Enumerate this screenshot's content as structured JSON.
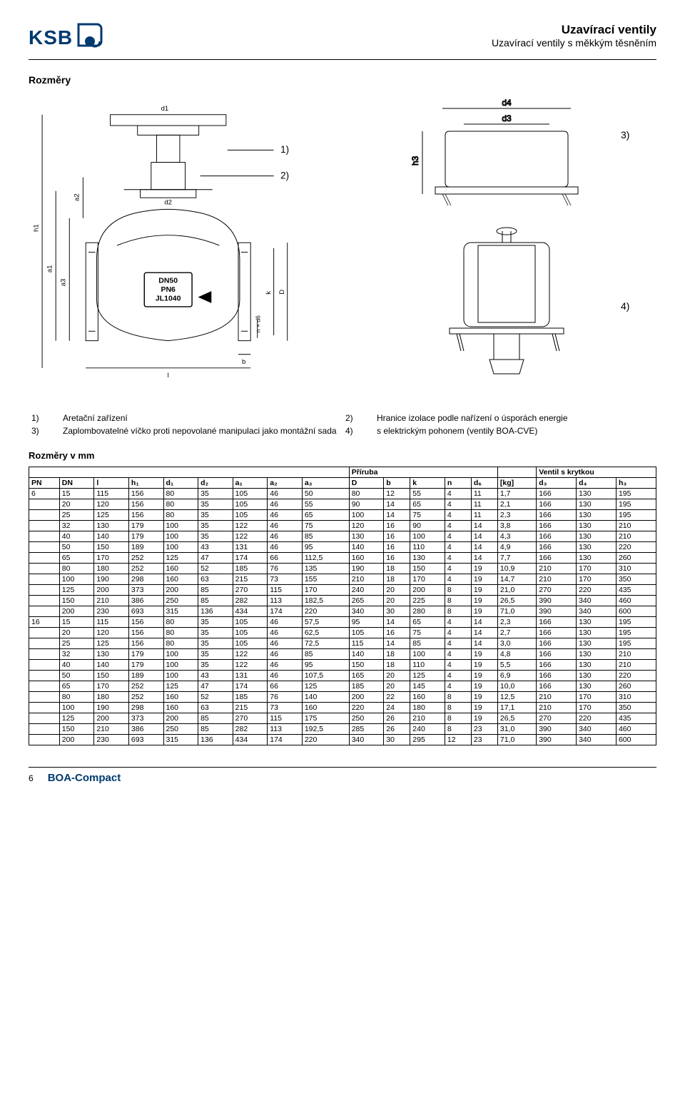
{
  "header": {
    "logo_text": "KSB",
    "title_main": "Uzavírací ventily",
    "title_sub": "Uzavírací ventily s měkkým těsněním"
  },
  "section": {
    "title": "Rozměry",
    "dim_heading": "Rozměry v mm"
  },
  "legend": {
    "items": [
      {
        "n": "1)",
        "t": "Aretační zařízení"
      },
      {
        "n": "3)",
        "t": "Zaplombovatelné víčko proti nepovolané manipulaci jako montážní sada"
      },
      {
        "n": "2)",
        "t": "Hranice izolace podle nařízení o úsporách energie"
      },
      {
        "n": "4)",
        "t": "s elektrickým pohonem (ventily BOA-CVE)"
      }
    ]
  },
  "callouts": {
    "c1": "1)",
    "c2": "2)",
    "c3": "3)",
    "c4": "4)"
  },
  "diagram_dims": {
    "d4": "d4",
    "d3": "d3",
    "h3": "h3",
    "a1": "a1",
    "a2": "a2",
    "a3": "a3",
    "h1": "h1",
    "d1": "d1",
    "d2": "d2",
    "l": "l",
    "b": "b",
    "nxd6": "n × d6",
    "k": "k",
    "D": "D",
    "plate_dn": "DN50",
    "plate_pn": "PN6",
    "plate_jl": "JL1040"
  },
  "table": {
    "group_flange": "Příruba",
    "group_cap": "Ventil s krytkou",
    "columns": [
      "PN",
      "DN",
      "l",
      "h₁",
      "d₁",
      "d₂",
      "a₁",
      "a₂",
      "a₃",
      "D",
      "b",
      "k",
      "n",
      "d₆",
      "[kg]",
      "d₃",
      "d₄",
      "h₃"
    ],
    "rows": [
      [
        "6",
        "15",
        "115",
        "156",
        "80",
        "35",
        "105",
        "46",
        "50",
        "80",
        "12",
        "55",
        "4",
        "11",
        "1,7",
        "166",
        "130",
        "195"
      ],
      [
        "",
        "20",
        "120",
        "156",
        "80",
        "35",
        "105",
        "46",
        "55",
        "90",
        "14",
        "65",
        "4",
        "11",
        "2,1",
        "166",
        "130",
        "195"
      ],
      [
        "",
        "25",
        "125",
        "156",
        "80",
        "35",
        "105",
        "46",
        "65",
        "100",
        "14",
        "75",
        "4",
        "11",
        "2,3",
        "166",
        "130",
        "195"
      ],
      [
        "",
        "32",
        "130",
        "179",
        "100",
        "35",
        "122",
        "46",
        "75",
        "120",
        "16",
        "90",
        "4",
        "14",
        "3,8",
        "166",
        "130",
        "210"
      ],
      [
        "",
        "40",
        "140",
        "179",
        "100",
        "35",
        "122",
        "46",
        "85",
        "130",
        "16",
        "100",
        "4",
        "14",
        "4,3",
        "166",
        "130",
        "210"
      ],
      [
        "",
        "50",
        "150",
        "189",
        "100",
        "43",
        "131",
        "46",
        "95",
        "140",
        "16",
        "110",
        "4",
        "14",
        "4,9",
        "166",
        "130",
        "220"
      ],
      [
        "",
        "65",
        "170",
        "252",
        "125",
        "47",
        "174",
        "66",
        "112,5",
        "160",
        "16",
        "130",
        "4",
        "14",
        "7,7",
        "166",
        "130",
        "260"
      ],
      [
        "",
        "80",
        "180",
        "252",
        "160",
        "52",
        "185",
        "76",
        "135",
        "190",
        "18",
        "150",
        "4",
        "19",
        "10,9",
        "210",
        "170",
        "310"
      ],
      [
        "",
        "100",
        "190",
        "298",
        "160",
        "63",
        "215",
        "73",
        "155",
        "210",
        "18",
        "170",
        "4",
        "19",
        "14,7",
        "210",
        "170",
        "350"
      ],
      [
        "",
        "125",
        "200",
        "373",
        "200",
        "85",
        "270",
        "115",
        "170",
        "240",
        "20",
        "200",
        "8",
        "19",
        "21,0",
        "270",
        "220",
        "435"
      ],
      [
        "",
        "150",
        "210",
        "386",
        "250",
        "85",
        "282",
        "113",
        "182,5",
        "265",
        "20",
        "225",
        "8",
        "19",
        "26,5",
        "390",
        "340",
        "460"
      ],
      [
        "",
        "200",
        "230",
        "693",
        "315",
        "136",
        "434",
        "174",
        "220",
        "340",
        "30",
        "280",
        "8",
        "19",
        "71,0",
        "390",
        "340",
        "600"
      ],
      [
        "16",
        "15",
        "115",
        "156",
        "80",
        "35",
        "105",
        "46",
        "57,5",
        "95",
        "14",
        "65",
        "4",
        "14",
        "2,3",
        "166",
        "130",
        "195"
      ],
      [
        "",
        "20",
        "120",
        "156",
        "80",
        "35",
        "105",
        "46",
        "62,5",
        "105",
        "16",
        "75",
        "4",
        "14",
        "2,7",
        "166",
        "130",
        "195"
      ],
      [
        "",
        "25",
        "125",
        "156",
        "80",
        "35",
        "105",
        "46",
        "72,5",
        "115",
        "14",
        "85",
        "4",
        "14",
        "3,0",
        "166",
        "130",
        "195"
      ],
      [
        "",
        "32",
        "130",
        "179",
        "100",
        "35",
        "122",
        "46",
        "85",
        "140",
        "18",
        "100",
        "4",
        "19",
        "4,8",
        "166",
        "130",
        "210"
      ],
      [
        "",
        "40",
        "140",
        "179",
        "100",
        "35",
        "122",
        "46",
        "95",
        "150",
        "18",
        "110",
        "4",
        "19",
        "5,5",
        "166",
        "130",
        "210"
      ],
      [
        "",
        "50",
        "150",
        "189",
        "100",
        "43",
        "131",
        "46",
        "107,5",
        "165",
        "20",
        "125",
        "4",
        "19",
        "6,9",
        "166",
        "130",
        "220"
      ],
      [
        "",
        "65",
        "170",
        "252",
        "125",
        "47",
        "174",
        "66",
        "125",
        "185",
        "20",
        "145",
        "4",
        "19",
        "10,0",
        "166",
        "130",
        "260"
      ],
      [
        "",
        "80",
        "180",
        "252",
        "160",
        "52",
        "185",
        "76",
        "140",
        "200",
        "22",
        "160",
        "8",
        "19",
        "12,5",
        "210",
        "170",
        "310"
      ],
      [
        "",
        "100",
        "190",
        "298",
        "160",
        "63",
        "215",
        "73",
        "160",
        "220",
        "24",
        "180",
        "8",
        "19",
        "17,1",
        "210",
        "170",
        "350"
      ],
      [
        "",
        "125",
        "200",
        "373",
        "200",
        "85",
        "270",
        "115",
        "175",
        "250",
        "26",
        "210",
        "8",
        "19",
        "26,5",
        "270",
        "220",
        "435"
      ],
      [
        "",
        "150",
        "210",
        "386",
        "250",
        "85",
        "282",
        "113",
        "192,5",
        "285",
        "26",
        "240",
        "8",
        "23",
        "31,0",
        "390",
        "340",
        "460"
      ],
      [
        "",
        "200",
        "230",
        "693",
        "315",
        "136",
        "434",
        "174",
        "220",
        "340",
        "30",
        "295",
        "12",
        "23",
        "71,0",
        "390",
        "340",
        "600"
      ]
    ]
  },
  "footer": {
    "page": "6",
    "title": "BOA-Compact"
  },
  "colors": {
    "brand": "#003a6f",
    "text": "#000000",
    "border": "#000000",
    "background": "#ffffff"
  }
}
